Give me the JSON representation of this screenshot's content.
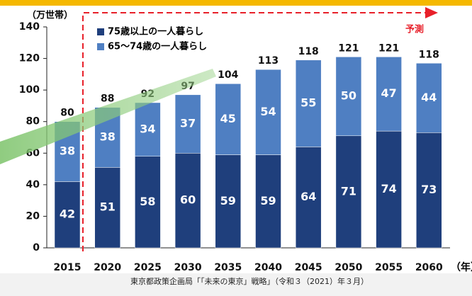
{
  "chart_data": {
    "type": "bar",
    "stacked": true,
    "y_label": "（万世帯）",
    "x_label": "（年）",
    "annotation": "予測",
    "source": "東京都政策企画局「「未来の東京」戦略」（令和３（2021）年３月）",
    "categories": [
      "2015",
      "2020",
      "2025",
      "2030",
      "2035",
      "2040",
      "2045",
      "2050",
      "2055",
      "2060"
    ],
    "series": [
      {
        "name": "75歳以上の一人暮らし",
        "color": "#1f3f7c",
        "values": [
          42,
          51,
          58,
          60,
          59,
          59,
          64,
          71,
          74,
          73
        ]
      },
      {
        "name": "65～74歳の一人暮らし",
        "color": "#4f7fc2",
        "values": [
          38,
          38,
          34,
          37,
          45,
          54,
          55,
          50,
          47,
          44
        ]
      }
    ],
    "totals": [
      80,
      88,
      92,
      97,
      104,
      113,
      118,
      121,
      121,
      118
    ],
    "ylim": [
      0,
      140
    ],
    "yticks": [
      0,
      20,
      40,
      60,
      80,
      100,
      120,
      140
    ]
  }
}
